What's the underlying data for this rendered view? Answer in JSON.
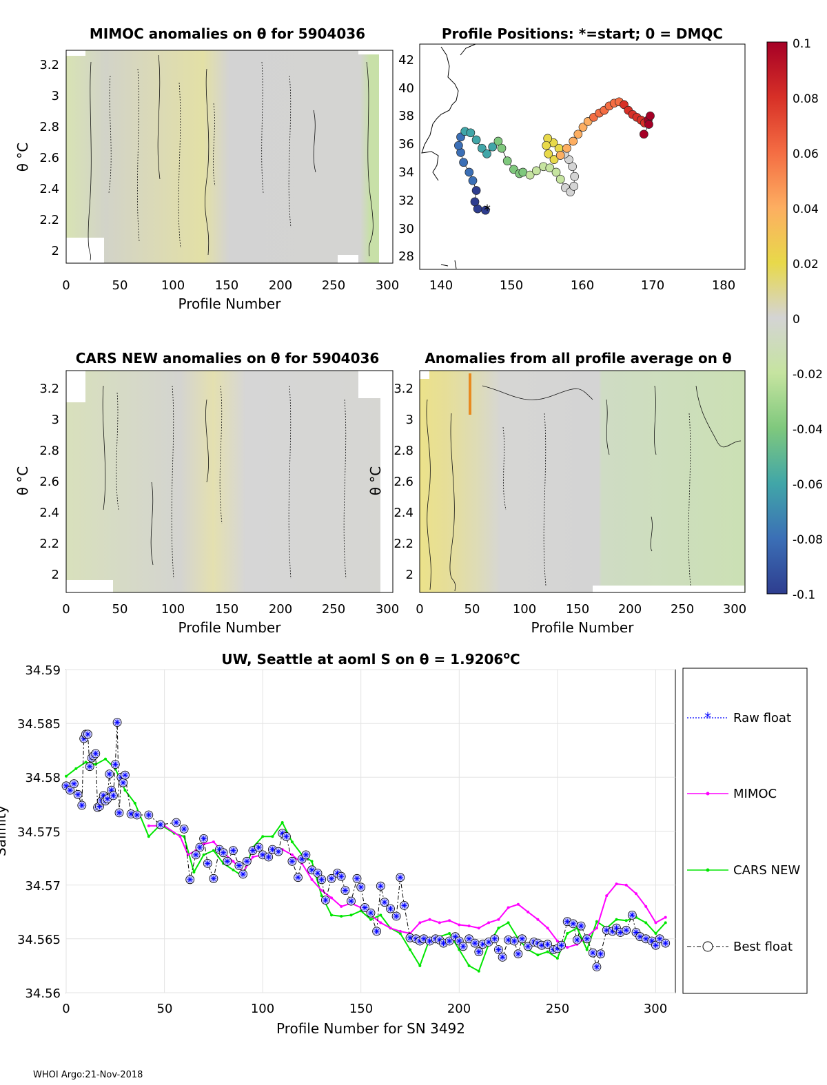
{
  "footer": "WHOI Argo:21-Nov-2018",
  "colorbar": {
    "ticks": [
      "0.1",
      "0.08",
      "0.06",
      "0.04",
      "0.02",
      "0",
      "-0.02",
      "-0.04",
      "-0.06",
      "-0.08",
      "-0.1"
    ],
    "stops": [
      "#a50026",
      "#d73027",
      "#f46d43",
      "#fdae61",
      "#e8d94a",
      "#d4d4d4",
      "#c6e4a0",
      "#7fc87d",
      "#41a6a8",
      "#3b6fb6",
      "#2e3d8f"
    ]
  },
  "chart_data": [
    {
      "id": "mimoc",
      "type": "heatmap",
      "title": "MIMOC anomalies on θ  for 5904036",
      "xlabel": "Profile Number",
      "ylabel": "θ °C",
      "xlim": [
        0,
        305
      ],
      "ylim": [
        1.88,
        3.3
      ],
      "xticks": [
        "0",
        "50",
        "100",
        "150",
        "200",
        "250",
        "300"
      ],
      "yticks": [
        "2",
        "2.2",
        "2.4",
        "2.6",
        "2.8",
        "3",
        "3.2"
      ],
      "note": "anomaly field mostly near 0 (grey), slightly positive near profiles 130-150 and slightly negative near 280-300"
    },
    {
      "id": "positions",
      "type": "scatter",
      "title": "Profile Positions: *=start; 0 = DMQC",
      "xlim": [
        137,
        183
      ],
      "ylim": [
        27,
        43
      ],
      "xticks": [
        "140",
        "150",
        "160",
        "170",
        "180"
      ],
      "yticks": [
        "28",
        "30",
        "32",
        "34",
        "36",
        "38",
        "40",
        "42"
      ],
      "track_lon": [
        146.3,
        145.2,
        144.8,
        145.0,
        144.5,
        144.0,
        143.2,
        142.8,
        142.5,
        142.8,
        143.4,
        144.2,
        145.0,
        145.8,
        146.5,
        147.3,
        148.1,
        148.6,
        149.4,
        150.3,
        151.1,
        151.6,
        152.6,
        153.5,
        154.5,
        155.4,
        156.3,
        156.9,
        157.6,
        158.3,
        158.8,
        158.9,
        158.6,
        158.1,
        157.5,
        156.7,
        155.9,
        155.1,
        154.9,
        155.2,
        156.0,
        156.9,
        157.8,
        158.7,
        159.4,
        160.1,
        160.8,
        161.6,
        162.4,
        163.1,
        163.8,
        164.5,
        165.2,
        165.9,
        166.5,
        167.1,
        167.7,
        168.3,
        168.8,
        169.3,
        169.6,
        169.4,
        168.7
      ],
      "track_lat": [
        31.2,
        31.3,
        31.8,
        32.6,
        33.3,
        33.9,
        34.6,
        35.3,
        35.8,
        36.4,
        36.8,
        36.7,
        36.2,
        35.6,
        35.2,
        35.7,
        36.1,
        35.6,
        34.7,
        34.1,
        33.8,
        33.9,
        33.7,
        34.0,
        34.3,
        34.2,
        33.9,
        33.4,
        32.8,
        32.5,
        32.9,
        33.6,
        34.3,
        34.8,
        35.2,
        35.6,
        36.0,
        36.3,
        35.8,
        35.2,
        34.8,
        35.1,
        35.6,
        36.1,
        36.6,
        37.1,
        37.5,
        37.8,
        38.1,
        38.3,
        38.6,
        38.8,
        38.9,
        38.7,
        38.3,
        38.0,
        37.8,
        37.6,
        37.4,
        37.6,
        37.9,
        37.3,
        36.6
      ]
    },
    {
      "id": "cars",
      "type": "heatmap",
      "title": "CARS NEW anomalies on θ for 5904036",
      "xlabel": "Profile Number",
      "ylabel": "θ °C",
      "xlim": [
        0,
        305
      ],
      "ylim": [
        1.88,
        3.3
      ],
      "xticks": [
        "0",
        "50",
        "100",
        "150",
        "200",
        "250",
        "300"
      ],
      "yticks": [
        "2",
        "2.2",
        "2.4",
        "2.6",
        "2.8",
        "3",
        "3.2"
      ]
    },
    {
      "id": "avg",
      "type": "heatmap",
      "title": "Anomalies from all profile average on θ",
      "xlabel": "Profile Number",
      "ylabel": "θ °C",
      "xlim": [
        0,
        310
      ],
      "ylim": [
        1.88,
        3.3
      ],
      "xticks": [
        "0",
        "50",
        "100",
        "150",
        "200",
        "250",
        "300"
      ],
      "yticks": [
        "2",
        "2.2",
        "2.4",
        "2.6",
        "2.8",
        "3",
        "3.2"
      ],
      "note": "positive anomalies (yellow) for profiles 0-50, slightly negative (green) after 170"
    },
    {
      "id": "salinity",
      "type": "line",
      "title_main": "UW, Seattle at aoml S on θ = 1.9206",
      "title_sup": "o",
      "title_end": "C",
      "xlabel": "Profile Number for SN 3492",
      "ylabel": "Salinity",
      "xlim": [
        0,
        310
      ],
      "ylim": [
        34.56,
        34.59
      ],
      "xticks": [
        "0",
        "50",
        "100",
        "150",
        "200",
        "250",
        "300"
      ],
      "yticks": [
        "34.56",
        "34.565",
        "34.57",
        "34.575",
        "34.58",
        "34.585",
        "34.59"
      ],
      "legend": [
        "Raw float",
        "MIMOC",
        "CARS NEW",
        "Best float"
      ],
      "series": [
        {
          "name": "CARS NEW",
          "color": "#00e600",
          "x": [
            0,
            5,
            10,
            15,
            20,
            25,
            30,
            35,
            42,
            48,
            55,
            60,
            65,
            70,
            75,
            80,
            85,
            90,
            95,
            100,
            105,
            110,
            115,
            120,
            125,
            130,
            135,
            140,
            145,
            150,
            155,
            160,
            165,
            170,
            175,
            180,
            185,
            190,
            195,
            200,
            205,
            210,
            215,
            220,
            225,
            230,
            235,
            240,
            245,
            250,
            255,
            260,
            265,
            270,
            275,
            280,
            285,
            290,
            295,
            300,
            305
          ],
          "y": [
            34.5801,
            34.5808,
            34.5814,
            34.5812,
            34.5817,
            34.5808,
            34.5788,
            34.5776,
            34.5745,
            34.5756,
            34.5748,
            34.5745,
            34.5712,
            34.5728,
            34.5732,
            34.572,
            34.5714,
            34.5708,
            34.5735,
            34.5745,
            34.5745,
            34.5758,
            34.574,
            34.5728,
            34.5722,
            34.569,
            34.5672,
            34.5671,
            34.5672,
            34.5676,
            34.5668,
            34.5672,
            34.566,
            34.5655,
            34.564,
            34.5625,
            34.565,
            34.5652,
            34.5655,
            34.564,
            34.5625,
            34.562,
            34.5645,
            34.566,
            34.5665,
            34.565,
            34.564,
            34.5635,
            34.5638,
            34.5632,
            34.5655,
            34.566,
            34.564,
            34.5666,
            34.566,
            34.5668,
            34.5667,
            34.567,
            34.5665,
            34.5655,
            34.5665
          ]
        },
        {
          "name": "MIMOC",
          "color": "#ff00ff",
          "x": [
            42,
            50,
            58,
            62,
            66,
            70,
            75,
            80,
            85,
            90,
            95,
            100,
            105,
            110,
            115,
            120,
            125,
            130,
            135,
            140,
            145,
            150,
            155,
            160,
            165,
            170,
            175,
            180,
            185,
            190,
            195,
            200,
            205,
            210,
            215,
            220,
            225,
            230,
            235,
            240,
            245,
            250,
            255,
            260,
            265,
            270,
            275,
            280,
            285,
            290,
            295,
            300,
            305
          ],
          "y": [
            34.5755,
            34.5755,
            34.5745,
            34.5728,
            34.5732,
            34.5738,
            34.574,
            34.573,
            34.5722,
            34.5712,
            34.5726,
            34.5728,
            34.573,
            34.5733,
            34.5728,
            34.572,
            34.5705,
            34.5695,
            34.5688,
            34.568,
            34.5683,
            34.5679,
            34.5672,
            34.5665,
            34.566,
            34.5657,
            34.5655,
            34.5665,
            34.5668,
            34.5665,
            34.5667,
            34.5663,
            34.5662,
            34.566,
            34.5665,
            34.5668,
            34.5679,
            34.5682,
            34.5675,
            34.5668,
            34.566,
            34.5648,
            34.5642,
            34.5645,
            34.5652,
            34.566,
            34.569,
            34.5701,
            34.57,
            34.5692,
            34.568,
            34.5665,
            34.567
          ]
        },
        {
          "name": "Best float",
          "color": "#0000cc",
          "x": [
            0,
            2,
            4,
            6,
            8,
            9,
            10,
            11,
            12,
            13,
            14,
            15,
            16,
            17,
            18,
            19,
            20,
            21,
            22,
            23,
            24,
            25,
            26,
            27,
            28,
            29,
            30,
            33,
            36,
            42,
            48,
            56,
            60,
            63,
            66,
            68,
            70,
            72,
            75,
            78,
            80,
            82,
            85,
            88,
            90,
            92,
            95,
            98,
            100,
            103,
            105,
            108,
            110,
            112,
            115,
            118,
            120,
            122,
            125,
            128,
            130,
            132,
            135,
            138,
            140,
            142,
            145,
            148,
            150,
            152,
            155,
            158,
            160,
            162,
            165,
            168,
            170,
            172,
            175,
            178,
            180,
            182,
            185,
            188,
            190,
            192,
            195,
            198,
            200,
            202,
            205,
            208,
            210,
            212,
            215,
            218,
            220,
            222,
            225,
            228,
            230,
            232,
            235,
            238,
            240,
            242,
            245,
            248,
            250,
            252,
            255,
            258,
            260,
            262,
            265,
            268,
            270,
            272,
            275,
            278,
            280,
            282,
            285,
            288,
            290,
            292,
            295,
            298,
            300,
            302,
            305
          ],
          "y": [
            34.5792,
            34.5788,
            34.5794,
            34.5784,
            34.5774,
            34.5836,
            34.584,
            34.584,
            34.581,
            34.5818,
            34.582,
            34.5822,
            34.5772,
            34.5773,
            34.5778,
            34.5783,
            34.5778,
            34.578,
            34.5803,
            34.5788,
            34.5783,
            34.5812,
            34.5851,
            34.5767,
            34.58,
            34.5795,
            34.5802,
            34.5766,
            34.5765,
            34.5765,
            34.5756,
            34.5758,
            34.5752,
            34.5705,
            34.5728,
            34.5735,
            34.5743,
            34.572,
            34.5706,
            34.5733,
            34.573,
            34.5722,
            34.5732,
            34.5718,
            34.571,
            34.5722,
            34.5732,
            34.5735,
            34.5728,
            34.5726,
            34.5733,
            34.5731,
            34.5748,
            34.5745,
            34.5722,
            34.5707,
            34.5724,
            34.5728,
            34.5714,
            34.5711,
            34.5705,
            34.5686,
            34.5706,
            34.5711,
            34.5708,
            34.5695,
            34.5685,
            34.5706,
            34.5698,
            34.5679,
            34.5674,
            34.5657,
            34.5699,
            34.5684,
            34.5678,
            34.5671,
            34.5707,
            34.5681,
            34.5651,
            34.565,
            34.5648,
            34.565,
            34.5648,
            34.565,
            34.5649,
            34.5646,
            34.5648,
            34.5652,
            34.5648,
            34.5643,
            34.565,
            34.5646,
            34.5638,
            34.5645,
            34.5647,
            34.565,
            34.564,
            34.5633,
            34.5649,
            34.5648,
            34.5636,
            34.565,
            34.5643,
            34.5647,
            34.5646,
            34.5644,
            34.5645,
            34.564,
            34.5641,
            34.5644,
            34.5666,
            34.5664,
            34.5649,
            34.5662,
            34.565,
            34.5637,
            34.5624,
            34.5636,
            34.5658,
            34.5657,
            34.566,
            34.5656,
            34.5658,
            34.5672,
            34.5656,
            34.5652,
            34.565,
            34.5648,
            34.5644,
            34.565,
            34.5646
          ]
        }
      ]
    }
  ]
}
